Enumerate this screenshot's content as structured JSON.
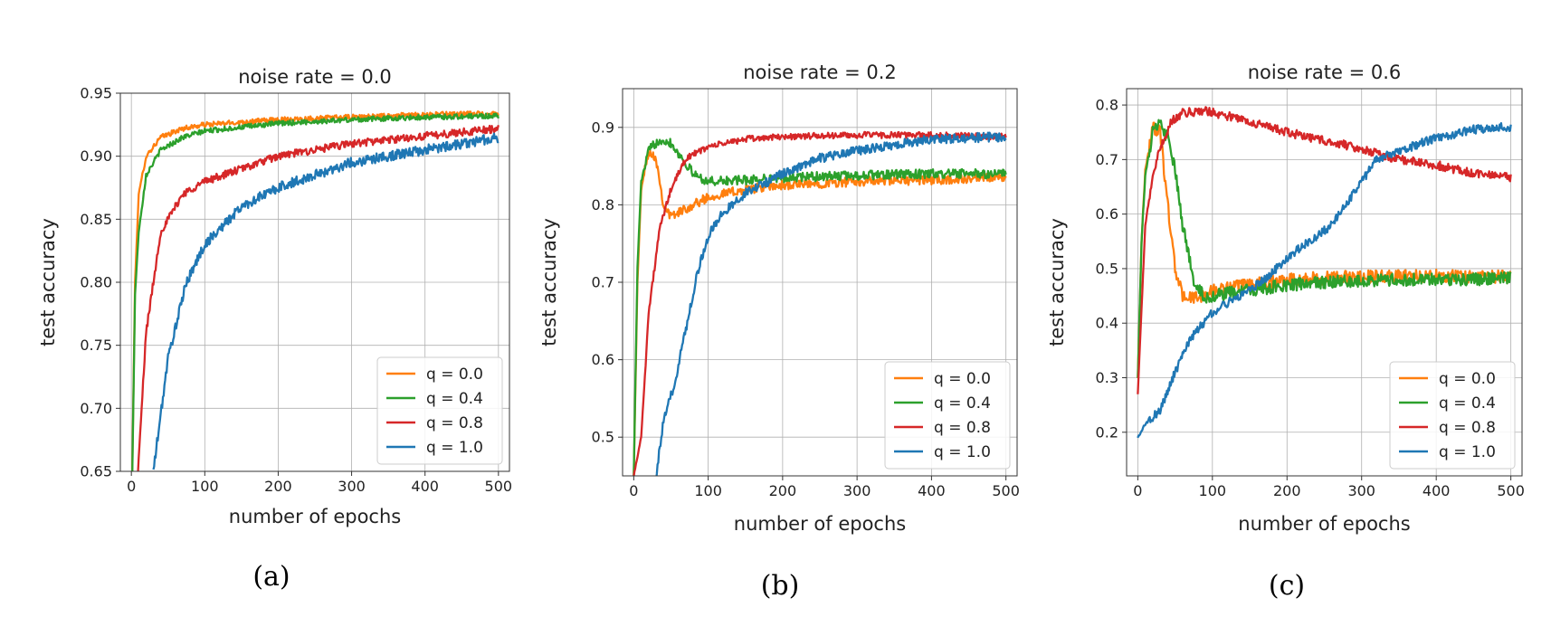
{
  "figure": {
    "captions": [
      "(a)",
      "(b)",
      "(c)"
    ]
  },
  "chart_data": [
    {
      "type": "line",
      "title": "noise rate = 0.0",
      "xlabel": "number of epochs",
      "ylabel": "test accuracy",
      "xlim": [
        -15,
        515
      ],
      "ylim": [
        0.65,
        0.95
      ],
      "xticks": [
        0,
        100,
        200,
        300,
        400,
        500
      ],
      "yticks": [
        0.65,
        0.7,
        0.75,
        0.8,
        0.85,
        0.9,
        0.95
      ],
      "ytick_labels": [
        "0.65",
        "0.70",
        "0.75",
        "0.80",
        "0.85",
        "0.90",
        "0.95"
      ],
      "grid": true,
      "legend_position": "bottom-right",
      "series": [
        {
          "name": "q = 0.0",
          "color": "#ff7f0e",
          "noise": 0.002,
          "points": [
            [
              0,
              0.6
            ],
            [
              5,
              0.8
            ],
            [
              10,
              0.87
            ],
            [
              20,
              0.9
            ],
            [
              40,
              0.915
            ],
            [
              70,
              0.922
            ],
            [
              100,
              0.925
            ],
            [
              200,
              0.929
            ],
            [
              300,
              0.931
            ],
            [
              400,
              0.933
            ],
            [
              500,
              0.934
            ]
          ]
        },
        {
          "name": "q = 0.4",
          "color": "#2ca02c",
          "noise": 0.002,
          "points": [
            [
              0,
              0.6
            ],
            [
              5,
              0.79
            ],
            [
              10,
              0.84
            ],
            [
              20,
              0.885
            ],
            [
              40,
              0.905
            ],
            [
              70,
              0.915
            ],
            [
              100,
              0.92
            ],
            [
              200,
              0.926
            ],
            [
              300,
              0.929
            ],
            [
              400,
              0.931
            ],
            [
              500,
              0.932
            ]
          ]
        },
        {
          "name": "q = 0.8",
          "color": "#d62728",
          "noise": 0.003,
          "points": [
            [
              0,
              0.55
            ],
            [
              10,
              0.66
            ],
            [
              20,
              0.76
            ],
            [
              40,
              0.84
            ],
            [
              70,
              0.87
            ],
            [
              100,
              0.88
            ],
            [
              200,
              0.9
            ],
            [
              300,
              0.91
            ],
            [
              400,
              0.916
            ],
            [
              500,
              0.922
            ]
          ]
        },
        {
          "name": "q = 1.0",
          "color": "#1f77b4",
          "noise": 0.004,
          "points": [
            [
              30,
              0.65
            ],
            [
              50,
              0.74
            ],
            [
              75,
              0.8
            ],
            [
              100,
              0.83
            ],
            [
              150,
              0.86
            ],
            [
              200,
              0.875
            ],
            [
              300,
              0.895
            ],
            [
              400,
              0.905
            ],
            [
              500,
              0.915
            ]
          ]
        }
      ]
    },
    {
      "type": "line",
      "title": "noise rate = 0.2",
      "xlabel": "number of epochs",
      "ylabel": "test accuracy",
      "xlim": [
        -15,
        515
      ],
      "ylim": [
        0.45,
        0.95
      ],
      "xticks": [
        0,
        100,
        200,
        300,
        400,
        500
      ],
      "yticks": [
        0.5,
        0.6,
        0.7,
        0.8,
        0.9
      ],
      "ytick_labels": [
        "0.5",
        "0.6",
        "0.7",
        "0.8",
        "0.9"
      ],
      "grid": true,
      "legend_position": "bottom-right",
      "series": [
        {
          "name": "q = 0.0",
          "color": "#ff7f0e",
          "noise": 0.006,
          "points": [
            [
              0,
              0.45
            ],
            [
              5,
              0.7
            ],
            [
              10,
              0.82
            ],
            [
              20,
              0.87
            ],
            [
              30,
              0.86
            ],
            [
              40,
              0.8
            ],
            [
              50,
              0.785
            ],
            [
              70,
              0.795
            ],
            [
              100,
              0.81
            ],
            [
              150,
              0.82
            ],
            [
              200,
              0.825
            ],
            [
              300,
              0.83
            ],
            [
              400,
              0.832
            ],
            [
              500,
              0.835
            ]
          ]
        },
        {
          "name": "q = 0.4",
          "color": "#2ca02c",
          "noise": 0.006,
          "points": [
            [
              0,
              0.45
            ],
            [
              5,
              0.72
            ],
            [
              10,
              0.83
            ],
            [
              20,
              0.87
            ],
            [
              35,
              0.885
            ],
            [
              50,
              0.88
            ],
            [
              65,
              0.86
            ],
            [
              80,
              0.84
            ],
            [
              100,
              0.83
            ],
            [
              150,
              0.832
            ],
            [
              200,
              0.835
            ],
            [
              300,
              0.838
            ],
            [
              400,
              0.84
            ],
            [
              500,
              0.84
            ]
          ]
        },
        {
          "name": "q = 0.8",
          "color": "#d62728",
          "noise": 0.004,
          "points": [
            [
              0,
              0.45
            ],
            [
              10,
              0.5
            ],
            [
              20,
              0.66
            ],
            [
              35,
              0.77
            ],
            [
              50,
              0.82
            ],
            [
              70,
              0.86
            ],
            [
              100,
              0.875
            ],
            [
              150,
              0.885
            ],
            [
              200,
              0.888
            ],
            [
              300,
              0.89
            ],
            [
              400,
              0.89
            ],
            [
              500,
              0.888
            ]
          ]
        },
        {
          "name": "q = 1.0",
          "color": "#1f77b4",
          "noise": 0.006,
          "points": [
            [
              30,
              0.45
            ],
            [
              40,
              0.52
            ],
            [
              55,
              0.57
            ],
            [
              70,
              0.64
            ],
            [
              85,
              0.71
            ],
            [
              100,
              0.76
            ],
            [
              120,
              0.79
            ],
            [
              150,
              0.815
            ],
            [
              200,
              0.84
            ],
            [
              250,
              0.86
            ],
            [
              300,
              0.87
            ],
            [
              400,
              0.885
            ],
            [
              500,
              0.888
            ]
          ]
        }
      ]
    },
    {
      "type": "line",
      "title": "noise rate = 0.6",
      "xlabel": "number of epochs",
      "ylabel": "test accuracy",
      "xlim": [
        -15,
        515
      ],
      "ylim": [
        0.12,
        0.83
      ],
      "xticks": [
        0,
        100,
        200,
        300,
        400,
        500
      ],
      "yticks": [
        0.2,
        0.3,
        0.4,
        0.5,
        0.6,
        0.7,
        0.8
      ],
      "ytick_labels": [
        "0.2",
        "0.3",
        "0.4",
        "0.5",
        "0.6",
        "0.7",
        "0.8"
      ],
      "grid": true,
      "legend_position": "bottom-right",
      "series": [
        {
          "name": "q = 0.0",
          "color": "#ff7f0e",
          "noise": 0.012,
          "points": [
            [
              0,
              0.3
            ],
            [
              5,
              0.55
            ],
            [
              10,
              0.68
            ],
            [
              20,
              0.76
            ],
            [
              30,
              0.75
            ],
            [
              40,
              0.62
            ],
            [
              50,
              0.5
            ],
            [
              60,
              0.45
            ],
            [
              80,
              0.445
            ],
            [
              100,
              0.46
            ],
            [
              150,
              0.47
            ],
            [
              200,
              0.48
            ],
            [
              300,
              0.485
            ],
            [
              400,
              0.487
            ],
            [
              500,
              0.485
            ]
          ]
        },
        {
          "name": "q = 0.4",
          "color": "#2ca02c",
          "noise": 0.012,
          "points": [
            [
              0,
              0.3
            ],
            [
              5,
              0.55
            ],
            [
              10,
              0.67
            ],
            [
              20,
              0.75
            ],
            [
              30,
              0.765
            ],
            [
              40,
              0.74
            ],
            [
              50,
              0.68
            ],
            [
              60,
              0.58
            ],
            [
              75,
              0.48
            ],
            [
              90,
              0.445
            ],
            [
              100,
              0.45
            ],
            [
              150,
              0.46
            ],
            [
              200,
              0.47
            ],
            [
              300,
              0.478
            ],
            [
              400,
              0.48
            ],
            [
              500,
              0.482
            ]
          ]
        },
        {
          "name": "q = 0.8",
          "color": "#d62728",
          "noise": 0.008,
          "points": [
            [
              0,
              0.27
            ],
            [
              10,
              0.58
            ],
            [
              20,
              0.67
            ],
            [
              30,
              0.72
            ],
            [
              45,
              0.77
            ],
            [
              60,
              0.785
            ],
            [
              90,
              0.79
            ],
            [
              120,
              0.78
            ],
            [
              150,
              0.77
            ],
            [
              200,
              0.75
            ],
            [
              250,
              0.735
            ],
            [
              300,
              0.72
            ],
            [
              350,
              0.7
            ],
            [
              400,
              0.69
            ],
            [
              450,
              0.675
            ],
            [
              500,
              0.668
            ]
          ]
        },
        {
          "name": "q = 1.0",
          "color": "#1f77b4",
          "noise": 0.008,
          "points": [
            [
              0,
              0.19
            ],
            [
              10,
              0.215
            ],
            [
              30,
              0.24
            ],
            [
              50,
              0.31
            ],
            [
              70,
              0.37
            ],
            [
              100,
              0.42
            ],
            [
              130,
              0.445
            ],
            [
              170,
              0.48
            ],
            [
              200,
              0.52
            ],
            [
              230,
              0.55
            ],
            [
              260,
              0.58
            ],
            [
              280,
              0.62
            ],
            [
              300,
              0.66
            ],
            [
              320,
              0.7
            ],
            [
              360,
              0.72
            ],
            [
              400,
              0.74
            ],
            [
              450,
              0.755
            ],
            [
              500,
              0.76
            ]
          ]
        }
      ]
    }
  ]
}
